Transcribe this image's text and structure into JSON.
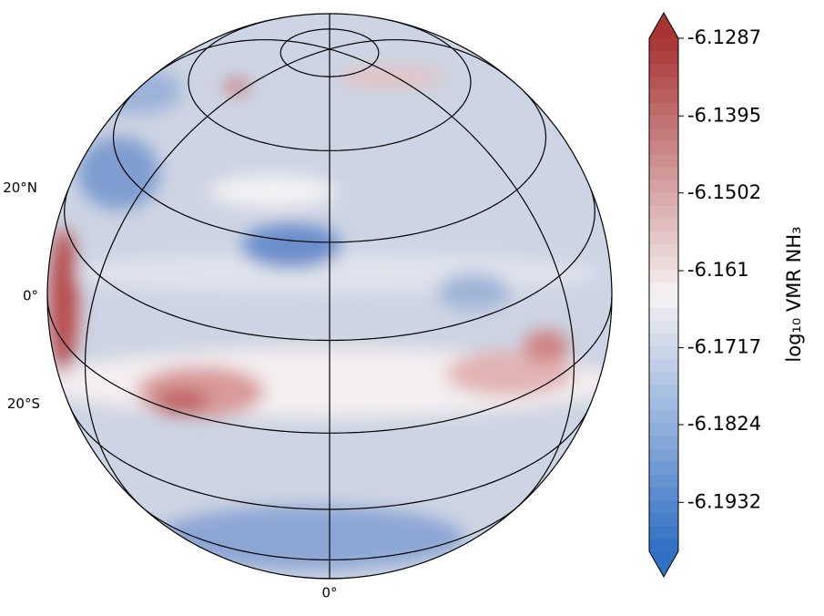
{
  "chart_data": {
    "type": "map",
    "lat_ticks": [
      {
        "value": 20,
        "label": "20°N"
      },
      {
        "value": 0,
        "label": "0°"
      },
      {
        "value": -20,
        "label": "20°S"
      }
    ],
    "lon_ticks": [
      {
        "value": 0,
        "label": "0°"
      }
    ],
    "colorbar": {
      "label": "log₁₀ VMR NH₃",
      "clim": [
        -6.2,
        -6.1287
      ],
      "ticks": [
        -6.1287,
        -6.1395,
        -6.1502,
        -6.161,
        -6.1717,
        -6.1824,
        -6.1932
      ],
      "colors": [
        "#2f6fc4",
        "#f6f2f3",
        "#a83434"
      ]
    }
  }
}
